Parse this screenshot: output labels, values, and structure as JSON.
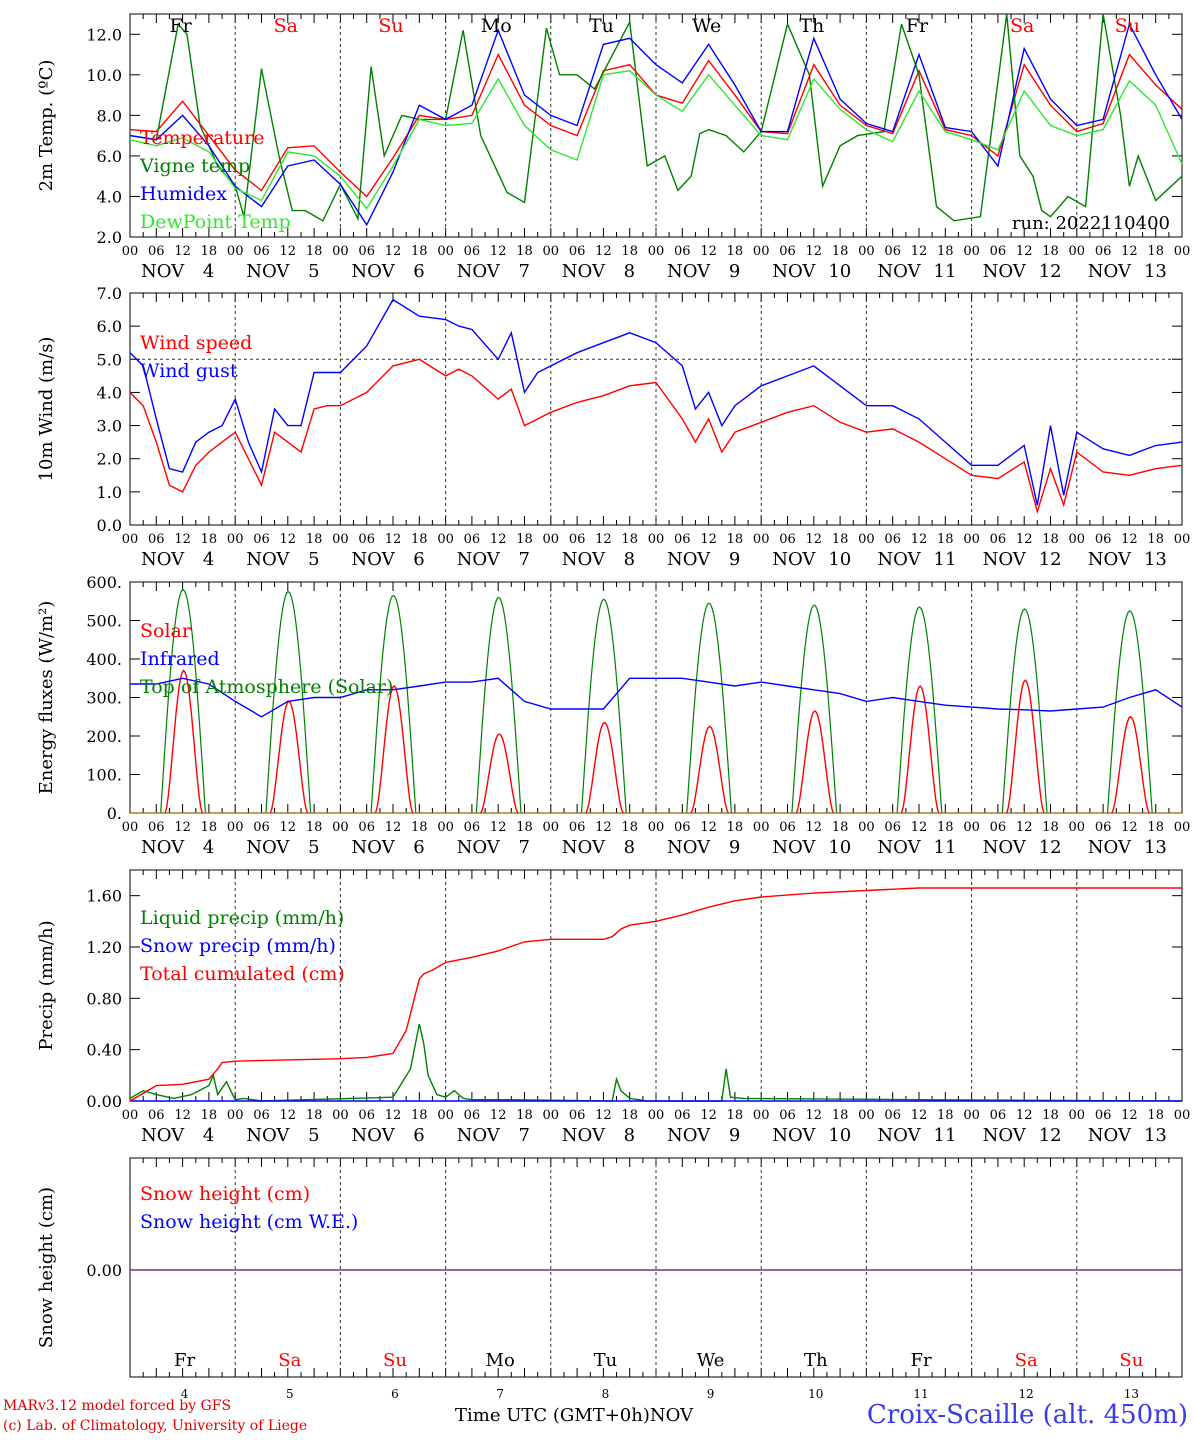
{
  "chart_data": [
    {
      "type": "line",
      "ylabel": "2m Temp. (ºC)",
      "ylim": [
        2.0,
        13.0
      ],
      "yticks": [
        "2.0",
        "4.0",
        "6.0",
        "8.0",
        "10.0",
        "12.0"
      ],
      "grid": "dashed vertical day separators",
      "legend_position": "left",
      "annotation": "run: 2022110400",
      "x_unit": "hours since NOV 4 00 UTC",
      "series": [
        {
          "name": "Temperature",
          "color": "#ff0000",
          "x": [
            0,
            6,
            12,
            18,
            24,
            30,
            36,
            42,
            48,
            54,
            60,
            66,
            72,
            78,
            84,
            90,
            96,
            102,
            108,
            114,
            120,
            126,
            132,
            138,
            144,
            150,
            156,
            162,
            168,
            174,
            180,
            186,
            192,
            198,
            204,
            210,
            216,
            222,
            228,
            234,
            240
          ],
          "y": [
            7.3,
            7.2,
            8.7,
            7.0,
            5.3,
            4.3,
            6.4,
            6.5,
            5.2,
            4.0,
            5.9,
            8.0,
            7.8,
            8.0,
            11.0,
            8.5,
            7.5,
            7.0,
            10.2,
            10.5,
            9.0,
            8.6,
            10.7,
            9.0,
            7.2,
            7.1,
            10.5,
            8.5,
            7.5,
            7.1,
            10.2,
            7.3,
            7.0,
            6.0,
            10.5,
            8.5,
            7.2,
            7.6,
            11.0,
            9.5,
            8.3
          ]
        },
        {
          "name": "Vigne temp",
          "color": "#008000",
          "x": [
            0,
            6,
            11,
            13,
            16,
            20,
            24,
            26,
            30,
            34,
            37,
            40,
            44,
            48,
            52,
            55,
            58,
            62,
            66,
            72,
            76,
            80,
            86,
            90,
            95,
            98,
            102,
            106,
            114,
            118,
            122,
            125,
            128,
            130,
            132,
            136,
            140,
            144,
            150,
            155,
            158,
            162,
            166,
            172,
            176,
            180,
            184,
            188,
            194,
            200,
            203,
            206,
            208,
            210,
            214,
            218,
            222,
            226,
            228,
            230,
            234,
            240
          ],
          "y": [
            7.0,
            6.8,
            12.5,
            12.0,
            7.5,
            5.5,
            4.5,
            3.0,
            10.3,
            6.0,
            3.3,
            3.3,
            2.8,
            4.6,
            2.9,
            10.4,
            6.0,
            8.0,
            7.8,
            7.8,
            12.2,
            7.0,
            4.2,
            3.7,
            12.3,
            10.0,
            10.0,
            9.3,
            12.6,
            5.5,
            6.0,
            4.3,
            5.0,
            7.1,
            7.3,
            7.0,
            6.2,
            7.2,
            12.5,
            10.0,
            4.5,
            6.5,
            7.0,
            7.2,
            12.5,
            10.0,
            3.5,
            2.8,
            3.0,
            13.0,
            6.0,
            5.0,
            3.3,
            3.0,
            4.0,
            3.5,
            13.0,
            8.0,
            4.5,
            6.0,
            3.8,
            5.0
          ]
        },
        {
          "name": "Humidex",
          "color": "#0000ff",
          "x": [
            0,
            6,
            12,
            18,
            24,
            30,
            36,
            42,
            48,
            54,
            60,
            66,
            72,
            78,
            84,
            90,
            96,
            102,
            108,
            114,
            120,
            126,
            132,
            138,
            144,
            150,
            156,
            162,
            168,
            174,
            180,
            186,
            192,
            198,
            204,
            210,
            216,
            222,
            228,
            234,
            240
          ],
          "y": [
            7.0,
            6.8,
            8.0,
            6.5,
            4.5,
            3.5,
            5.5,
            5.8,
            4.6,
            2.6,
            5.2,
            8.5,
            7.8,
            8.5,
            12.2,
            9.0,
            8.0,
            7.5,
            11.5,
            11.8,
            10.5,
            9.6,
            11.5,
            9.5,
            7.2,
            7.2,
            11.8,
            8.8,
            7.6,
            7.2,
            11.0,
            7.4,
            7.2,
            5.5,
            11.3,
            8.8,
            7.5,
            7.8,
            12.5,
            10.0,
            7.8
          ]
        },
        {
          "name": "DewPoint Temp",
          "color": "#32e632",
          "x": [
            0,
            6,
            12,
            18,
            24,
            30,
            36,
            42,
            48,
            54,
            60,
            66,
            72,
            78,
            84,
            90,
            96,
            102,
            108,
            114,
            120,
            126,
            132,
            138,
            144,
            150,
            156,
            162,
            168,
            174,
            180,
            186,
            192,
            198,
            204,
            210,
            216,
            222,
            228,
            234,
            240
          ],
          "y": [
            6.8,
            6.5,
            6.9,
            6.2,
            4.4,
            3.8,
            6.2,
            6.0,
            5.0,
            3.4,
            5.5,
            7.8,
            7.5,
            7.6,
            9.8,
            7.5,
            6.3,
            5.8,
            10.0,
            10.2,
            9.0,
            8.2,
            10.0,
            8.5,
            7.0,
            6.8,
            9.8,
            8.3,
            7.3,
            6.7,
            9.2,
            7.2,
            6.8,
            6.3,
            9.2,
            7.5,
            7.0,
            7.3,
            9.7,
            8.5,
            5.6
          ]
        }
      ]
    },
    {
      "type": "line",
      "ylabel": "10m Wind (m/s)",
      "ylim": [
        0.0,
        7.0
      ],
      "yticks": [
        "0.0",
        "1.0",
        "2.0",
        "3.0",
        "4.0",
        "5.0",
        "6.0",
        "7.0"
      ],
      "hline": 5.0,
      "legend_position": "left",
      "series": [
        {
          "name": "Wind speed",
          "color": "#ff0000",
          "x": [
            0,
            3,
            6,
            9,
            12,
            15,
            18,
            21,
            24,
            27,
            30,
            33,
            36,
            39,
            42,
            45,
            48,
            54,
            60,
            66,
            72,
            75,
            78,
            84,
            87,
            90,
            93,
            96,
            102,
            108,
            114,
            120,
            126,
            129,
            132,
            135,
            138,
            144,
            150,
            156,
            162,
            168,
            174,
            180,
            186,
            192,
            198,
            204,
            207,
            210,
            213,
            216,
            222,
            228,
            234,
            240
          ],
          "y": [
            4.0,
            3.6,
            2.5,
            1.2,
            1.0,
            1.8,
            2.2,
            2.5,
            2.8,
            2.0,
            1.2,
            2.8,
            2.5,
            2.2,
            3.5,
            3.6,
            3.6,
            4.0,
            4.8,
            5.0,
            4.5,
            4.7,
            4.5,
            3.8,
            4.1,
            3.0,
            3.2,
            3.4,
            3.7,
            3.9,
            4.2,
            4.3,
            3.2,
            2.5,
            3.2,
            2.2,
            2.8,
            3.1,
            3.4,
            3.6,
            3.1,
            2.8,
            2.9,
            2.5,
            2.0,
            1.5,
            1.4,
            1.9,
            0.4,
            1.7,
            0.6,
            2.2,
            1.6,
            1.5,
            1.7,
            1.8
          ]
        },
        {
          "name": "Wind gust",
          "color": "#0000ff",
          "x": [
            0,
            3,
            6,
            9,
            12,
            15,
            18,
            21,
            24,
            27,
            30,
            33,
            36,
            39,
            42,
            45,
            48,
            54,
            60,
            66,
            72,
            75,
            78,
            84,
            87,
            90,
            93,
            96,
            102,
            108,
            114,
            120,
            126,
            129,
            132,
            135,
            138,
            144,
            150,
            156,
            162,
            168,
            174,
            180,
            186,
            192,
            198,
            204,
            207,
            210,
            213,
            216,
            222,
            228,
            234,
            240
          ],
          "y": [
            5.2,
            4.8,
            3.2,
            1.7,
            1.6,
            2.5,
            2.8,
            3.0,
            3.8,
            2.5,
            1.6,
            3.5,
            3.0,
            3.0,
            4.6,
            4.6,
            4.6,
            5.4,
            6.8,
            6.3,
            6.2,
            6.0,
            5.9,
            5.0,
            5.8,
            4.0,
            4.6,
            4.8,
            5.2,
            5.5,
            5.8,
            5.5,
            4.8,
            3.5,
            4.0,
            3.0,
            3.6,
            4.2,
            4.5,
            4.8,
            4.2,
            3.6,
            3.6,
            3.2,
            2.5,
            1.8,
            1.8,
            2.4,
            0.6,
            3.0,
            0.9,
            2.8,
            2.3,
            2.1,
            2.4,
            2.5
          ]
        }
      ]
    },
    {
      "type": "line",
      "ylabel": "Energy fluxes (W/m²)",
      "ylim": [
        0,
        600
      ],
      "yticks": [
        "0.",
        "100.",
        "200.",
        "300.",
        "400.",
        "500.",
        "600."
      ],
      "legend_position": "left",
      "series": [
        {
          "name": "Solar",
          "color": "#ff0000",
          "daily_peaks": [
            370,
            290,
            330,
            205,
            235,
            225,
            265,
            330,
            345,
            250
          ]
        },
        {
          "name": "Infrared",
          "color": "#0000ff",
          "x": [
            0,
            6,
            12,
            18,
            24,
            30,
            36,
            42,
            48,
            54,
            60,
            66,
            72,
            78,
            84,
            90,
            96,
            102,
            108,
            114,
            120,
            126,
            132,
            138,
            144,
            150,
            156,
            162,
            168,
            174,
            180,
            186,
            192,
            198,
            204,
            210,
            216,
            222,
            228,
            234,
            240
          ],
          "y": [
            335,
            335,
            350,
            335,
            290,
            250,
            290,
            300,
            300,
            320,
            320,
            330,
            340,
            340,
            350,
            290,
            270,
            270,
            270,
            350,
            350,
            350,
            340,
            330,
            340,
            330,
            320,
            310,
            290,
            300,
            290,
            280,
            275,
            270,
            268,
            265,
            270,
            275,
            300,
            320,
            275
          ]
        },
        {
          "name": "Top of Atmosphere (Solar)",
          "color": "#008000",
          "daily_peaks": [
            580,
            575,
            565,
            560,
            555,
            545,
            540,
            535,
            530,
            525
          ]
        }
      ]
    },
    {
      "type": "line",
      "ylabel": "Precip (mm/h)",
      "ylim": [
        0.0,
        1.8
      ],
      "yticks": [
        "0.00",
        "0.40",
        "0.80",
        "1.20",
        "1.60"
      ],
      "legend_position": "left",
      "series": [
        {
          "name": "Liquid precip (mm/h)",
          "color": "#008000",
          "x": [
            0,
            3,
            6,
            10,
            14,
            18,
            19,
            20,
            22,
            24,
            26,
            30,
            60,
            64,
            66,
            67,
            68,
            70,
            72,
            74,
            76,
            78,
            86,
            110,
            111,
            112,
            114,
            118,
            135,
            136,
            137,
            140,
            180,
            240
          ],
          "y": [
            0.02,
            0.08,
            0.05,
            0.02,
            0.05,
            0.12,
            0.2,
            0.05,
            0.15,
            0.01,
            0.02,
            0.0,
            0.03,
            0.25,
            0.6,
            0.45,
            0.2,
            0.05,
            0.03,
            0.08,
            0.02,
            0.01,
            0.01,
            0.0,
            0.17,
            0.08,
            0.02,
            0.0,
            0.0,
            0.25,
            0.03,
            0.02,
            0.01,
            0.0
          ]
        },
        {
          "name": "Snow precip (mm/h)",
          "color": "#0000ff",
          "x": [
            0,
            240
          ],
          "y": [
            0.0,
            0.0
          ]
        },
        {
          "name": "Total cumulated (cm)",
          "color": "#ff0000",
          "x": [
            0,
            6,
            12,
            18,
            20,
            21,
            24,
            36,
            48,
            54,
            60,
            63,
            66,
            67,
            69,
            72,
            78,
            84,
            90,
            96,
            108,
            110,
            112,
            114,
            120,
            126,
            132,
            138,
            144,
            156,
            168,
            180,
            192,
            240
          ],
          "y": [
            0.0,
            0.12,
            0.13,
            0.17,
            0.25,
            0.3,
            0.31,
            0.32,
            0.33,
            0.34,
            0.37,
            0.55,
            0.95,
            0.99,
            1.02,
            1.08,
            1.12,
            1.17,
            1.24,
            1.26,
            1.26,
            1.28,
            1.34,
            1.37,
            1.4,
            1.45,
            1.51,
            1.56,
            1.59,
            1.62,
            1.64,
            1.66,
            1.66,
            1.66
          ]
        }
      ]
    },
    {
      "type": "line",
      "ylabel": "Snow height (cm)",
      "yticks": [
        "0.00"
      ],
      "legend_position": "left",
      "series": [
        {
          "name": "Snow height (cm)",
          "color": "#ff0000",
          "x": [
            0,
            240
          ],
          "y": [
            0.0,
            0.0
          ]
        },
        {
          "name": "Snow height (cm W.E.)",
          "color": "#0000ff",
          "x": [
            0,
            240
          ],
          "y": [
            0.0,
            0.0
          ]
        }
      ]
    }
  ],
  "axis": {
    "hour_ticks": [
      "00",
      "06",
      "12",
      "18"
    ],
    "end_tick": "00",
    "month": "NOV",
    "dates": [
      "4",
      "5",
      "6",
      "7",
      "8",
      "9",
      "10",
      "11",
      "12",
      "13"
    ],
    "weekdays": [
      "Fr",
      "Sa",
      "Su",
      "Mo",
      "Tu",
      "We",
      "Th",
      "Fr",
      "Sa",
      "Su"
    ],
    "weekday_colors": [
      "#000000",
      "#ff0000",
      "#ff0000",
      "#000000",
      "#000000",
      "#000000",
      "#000000",
      "#000000",
      "#ff0000",
      "#ff0000"
    ]
  },
  "footer": {
    "credit_line1": "MARv3.12 model forced by GFS",
    "credit_line2": "(c) Lab. of Climatology, University of Liege",
    "time_label": "Time UTC (GMT+0h)",
    "month_label": "NOV",
    "station": "Croix-Scaille (alt. 450m)"
  },
  "colors": {
    "red": "#ff0000",
    "green": "#008000",
    "blue": "#0000ff",
    "lightgreen": "#32e632",
    "station": "#3a3ae6"
  }
}
